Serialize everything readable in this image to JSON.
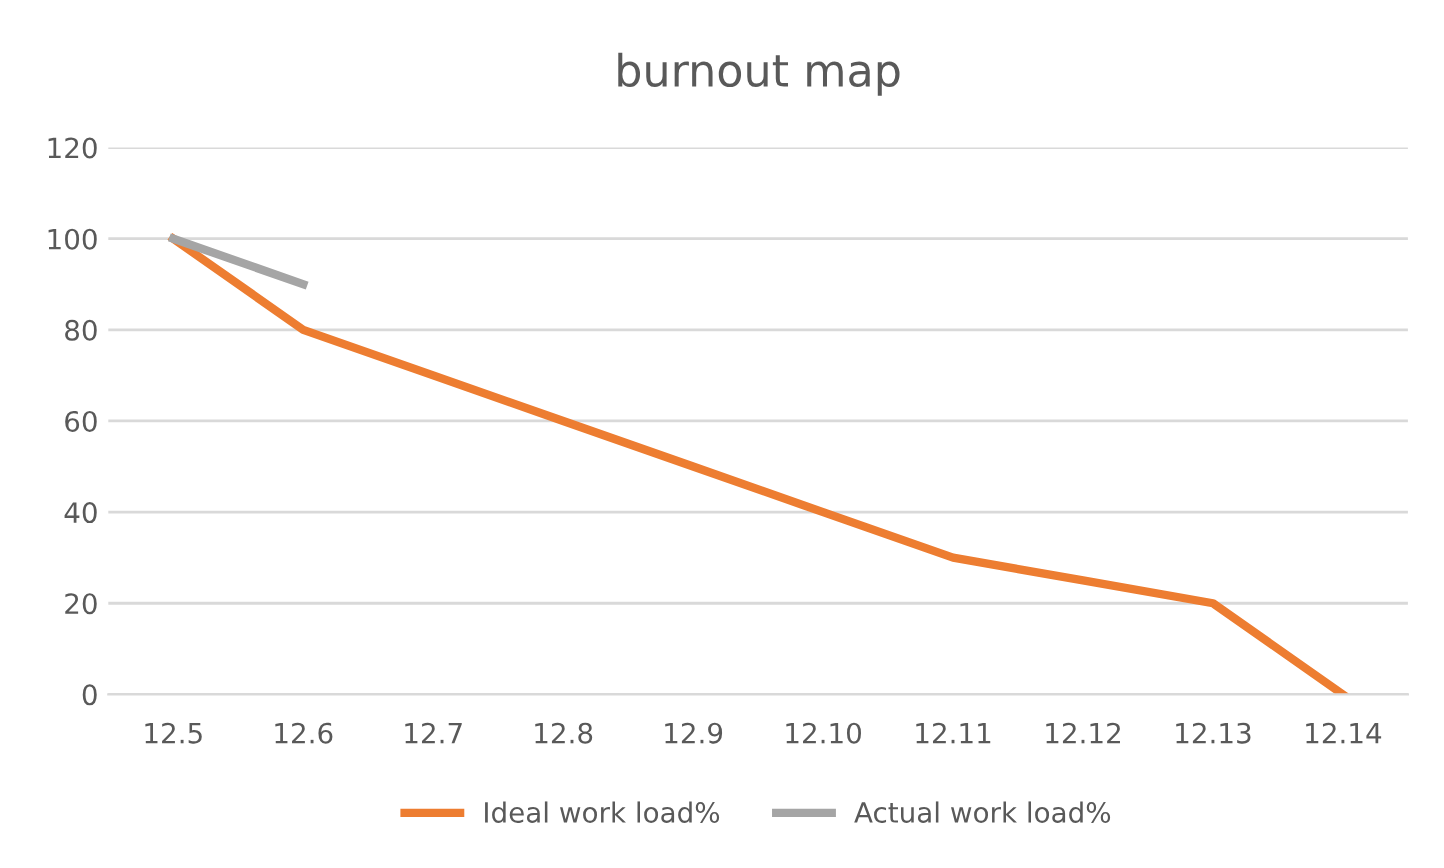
{
  "chart_data": {
    "type": "line",
    "title": "burnout map",
    "categories": [
      "12.5",
      "12.6",
      "12.7",
      "12.8",
      "12.9",
      "12.10",
      "12.11",
      "12.12",
      "12.13",
      "12.14"
    ],
    "series": [
      {
        "name": "Ideal work load%",
        "color": "#ed7d31",
        "values": [
          100,
          80,
          70,
          60,
          50,
          40,
          30,
          25,
          20,
          0
        ]
      },
      {
        "name": "Actual work load%",
        "color": "#a5a5a5",
        "values": [
          100,
          90,
          null,
          null,
          null,
          null,
          null,
          null,
          null,
          null
        ]
      }
    ],
    "ylim": [
      0,
      120
    ],
    "yticks": [
      0,
      20,
      40,
      60,
      80,
      100,
      120
    ],
    "grid": "y",
    "legend": "bottom",
    "marker": "none",
    "line_style": "solid"
  }
}
